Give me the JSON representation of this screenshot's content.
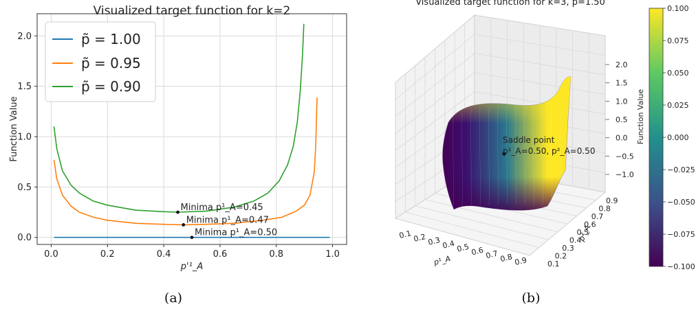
{
  "captions": {
    "a": "(a)",
    "b": "(b)"
  },
  "chart_data": [
    {
      "type": "line",
      "title": "Visualized target function for k=2",
      "xlabel": "p'¹_A",
      "ylabel": "Function Value",
      "xlim": [
        -0.05,
        1.05
      ],
      "ylim": [
        -0.07,
        2.22
      ],
      "xticks": [
        "0.0",
        "0.2",
        "0.4",
        "0.6",
        "0.8",
        "1.0"
      ],
      "yticks": [
        "0.0",
        "0.5",
        "1.0",
        "1.5",
        "2.0"
      ],
      "grid": true,
      "legend_position": "top-left",
      "series": [
        {
          "name": "p̃ = 1.00",
          "color": "#1f77b4",
          "points": [
            [
              0.01,
              0.0
            ],
            [
              0.99,
              0.0
            ]
          ]
        },
        {
          "name": "p̃ = 0.95",
          "color": "#ff7f0e",
          "points": [
            [
              0.01,
              0.77
            ],
            [
              0.02,
              0.58
            ],
            [
              0.04,
              0.42
            ],
            [
              0.07,
              0.31
            ],
            [
              0.1,
              0.25
            ],
            [
              0.15,
              0.2
            ],
            [
              0.2,
              0.17
            ],
            [
              0.3,
              0.14
            ],
            [
              0.4,
              0.13
            ],
            [
              0.47,
              0.125
            ],
            [
              0.55,
              0.13
            ],
            [
              0.65,
              0.14
            ],
            [
              0.75,
              0.17
            ],
            [
              0.82,
              0.2
            ],
            [
              0.87,
              0.26
            ],
            [
              0.9,
              0.32
            ],
            [
              0.92,
              0.42
            ],
            [
              0.935,
              0.65
            ],
            [
              0.94,
              0.9
            ],
            [
              0.945,
              1.39
            ]
          ]
        },
        {
          "name": "p̃ = 0.90",
          "color": "#2ca02c",
          "points": [
            [
              0.01,
              1.1
            ],
            [
              0.02,
              0.88
            ],
            [
              0.04,
              0.66
            ],
            [
              0.07,
              0.52
            ],
            [
              0.1,
              0.44
            ],
            [
              0.15,
              0.36
            ],
            [
              0.2,
              0.32
            ],
            [
              0.3,
              0.27
            ],
            [
              0.4,
              0.255
            ],
            [
              0.45,
              0.25
            ],
            [
              0.55,
              0.26
            ],
            [
              0.65,
              0.3
            ],
            [
              0.72,
              0.36
            ],
            [
              0.77,
              0.44
            ],
            [
              0.81,
              0.56
            ],
            [
              0.84,
              0.72
            ],
            [
              0.86,
              0.9
            ],
            [
              0.875,
              1.15
            ],
            [
              0.885,
              1.45
            ],
            [
              0.893,
              1.8
            ],
            [
              0.898,
              2.12
            ]
          ]
        }
      ],
      "annotations": [
        {
          "x": 0.45,
          "y": 0.25,
          "text": "Minima p¹_A=0.45",
          "color": "#2ca02c"
        },
        {
          "x": 0.47,
          "y": 0.125,
          "text": "Minima p¹_A=0.47",
          "color": "#ff7f0e"
        },
        {
          "x": 0.5,
          "y": 0.0,
          "text": "Minima p¹_A=0.50",
          "color": "#1f77b4"
        }
      ]
    },
    {
      "type": "surface3d",
      "title": "Visualized target function for k=3, p̃=1.50",
      "xlabel": "p¹_A",
      "ylabel": "p²_A",
      "zlabel": "Function Value",
      "xticks": [
        "0.1",
        "0.2",
        "0.3",
        "0.4",
        "0.5",
        "0.6",
        "0.7",
        "0.8",
        "0.9"
      ],
      "yticks": [
        "0.1",
        "0.2",
        "0.3",
        "0.4",
        "0.5",
        "0.6",
        "0.7",
        "0.8",
        "0.9"
      ],
      "zticks": [
        "2.0",
        "1.5",
        "1.0",
        "0.5",
        "0.0",
        "−0.5",
        "−1.0"
      ],
      "annotation": {
        "title": "Saddle point",
        "text": "p¹_A=0.50, p²_A=0.50",
        "x": 0.5,
        "y": 0.5
      },
      "colorbar": {
        "colormap": "viridis",
        "range": [
          -0.1,
          0.1
        ],
        "ticks": [
          "0.100",
          "0.075",
          "0.050",
          "0.025",
          "0.000",
          "−0.025",
          "−0.050",
          "−0.075",
          "−0.100"
        ]
      }
    }
  ]
}
